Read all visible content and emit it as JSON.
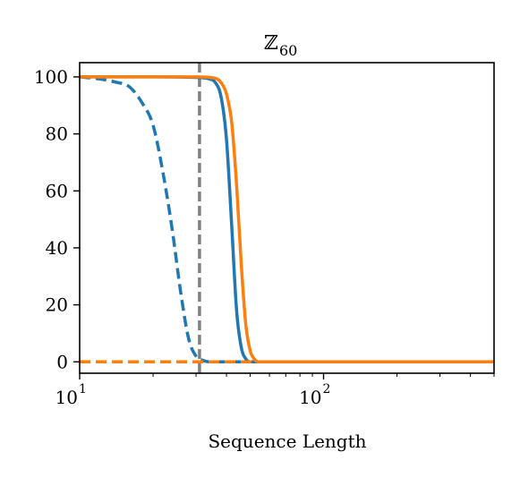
{
  "chart_data": {
    "type": "line",
    "title": "ℤ",
    "title_subscript": "60",
    "xlabel": "Sequence Length",
    "ylabel": "",
    "xscale": "log",
    "xlim": [
      10,
      500
    ],
    "ylim": [
      -4,
      105
    ],
    "yticks": [
      0,
      20,
      40,
      60,
      80,
      100
    ],
    "xticks_major": [
      {
        "value": 10,
        "base": "10",
        "exp": "1"
      },
      {
        "value": 100,
        "base": "10",
        "exp": "2"
      }
    ],
    "grid": false,
    "vline": {
      "x": 31,
      "color": "#808080",
      "style": "dashed"
    },
    "series": [
      {
        "color": "#1f77b4",
        "style": "dashed",
        "x": [
          10,
          12,
          14,
          16,
          18,
          20,
          22,
          24,
          26,
          28,
          30,
          32,
          34,
          40,
          50,
          60
        ],
        "y": [
          100,
          99.3,
          98.2,
          96.5,
          91,
          83,
          66,
          46,
          24,
          8,
          2,
          0.5,
          0,
          0,
          0,
          0
        ]
      },
      {
        "color": "#1f77b4",
        "style": "solid",
        "x": [
          10,
          20,
          30,
          34,
          36,
          38,
          40,
          42,
          44,
          46,
          48,
          50,
          60,
          500
        ],
        "y": [
          100,
          100,
          99.8,
          99.3,
          98,
          93,
          78,
          48,
          18,
          5,
          1,
          0,
          0,
          0
        ]
      },
      {
        "color": "#ff7f0e",
        "style": "dashed",
        "x": [
          10,
          500
        ],
        "y": [
          0,
          0
        ]
      },
      {
        "color": "#ff7f0e",
        "style": "solid",
        "x": [
          10,
          20,
          30,
          36,
          38,
          40,
          42,
          44,
          46,
          48,
          50,
          52,
          54,
          60,
          500
        ],
        "y": [
          100,
          100,
          100,
          99.5,
          98,
          94,
          84,
          62,
          34,
          13,
          4,
          1,
          0,
          0,
          0
        ]
      }
    ]
  }
}
